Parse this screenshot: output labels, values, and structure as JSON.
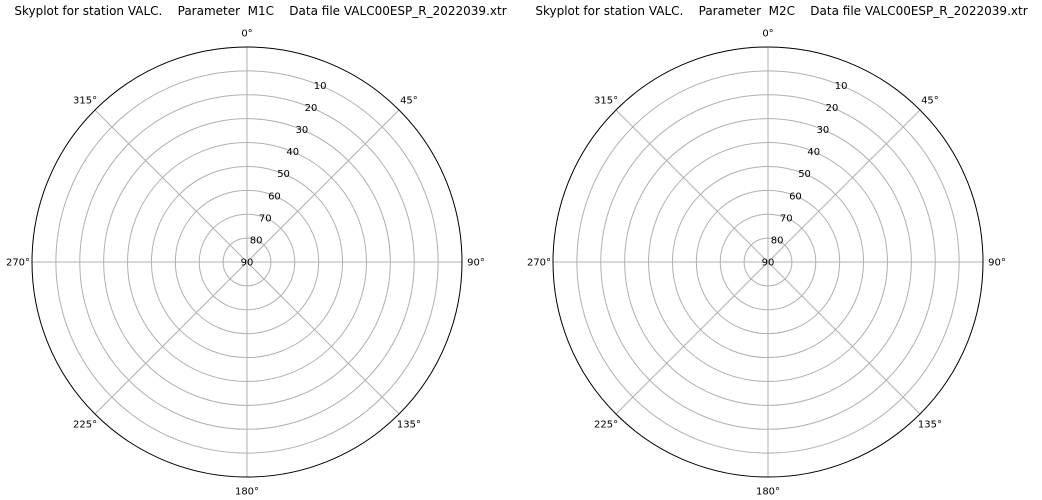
{
  "chart_data": [
    {
      "type": "polar",
      "title": "Skyplot for station VALC.    Parameter  M1C    Data file VALC00ESP_R_2022039.xtr",
      "theta_ticks": [
        "0°",
        "45°",
        "90°",
        "135°",
        "180°",
        "225°",
        "270°",
        "315°"
      ],
      "theta_values_deg": [
        0,
        45,
        90,
        135,
        180,
        225,
        270,
        315
      ],
      "theta_direction": "clockwise",
      "theta_zero_location": "top",
      "r_ticks": [
        "10",
        "20",
        "30",
        "40",
        "50",
        "60",
        "70",
        "80",
        "90"
      ],
      "r_values": [
        10,
        20,
        30,
        40,
        50,
        60,
        70,
        80,
        90
      ],
      "r_axis": "elevation",
      "r_range": [
        0,
        90
      ],
      "r_inverted": true,
      "grid": true,
      "series": []
    },
    {
      "type": "polar",
      "title": "Skyplot for station VALC.    Parameter  M2C    Data file VALC00ESP_R_2022039.xtr",
      "theta_ticks": [
        "0°",
        "45°",
        "90°",
        "135°",
        "180°",
        "225°",
        "270°",
        "315°"
      ],
      "theta_values_deg": [
        0,
        45,
        90,
        135,
        180,
        225,
        270,
        315
      ],
      "theta_direction": "clockwise",
      "theta_zero_location": "top",
      "r_ticks": [
        "10",
        "20",
        "30",
        "40",
        "50",
        "60",
        "70",
        "80",
        "90"
      ],
      "r_values": [
        10,
        20,
        30,
        40,
        50,
        60,
        70,
        80,
        90
      ],
      "r_axis": "elevation",
      "r_range": [
        0,
        90
      ],
      "r_inverted": true,
      "grid": true,
      "series": []
    }
  ],
  "colors": {
    "grid": "#b0b0b0",
    "outline": "#000000",
    "text": "#000000",
    "background": "#ffffff"
  }
}
